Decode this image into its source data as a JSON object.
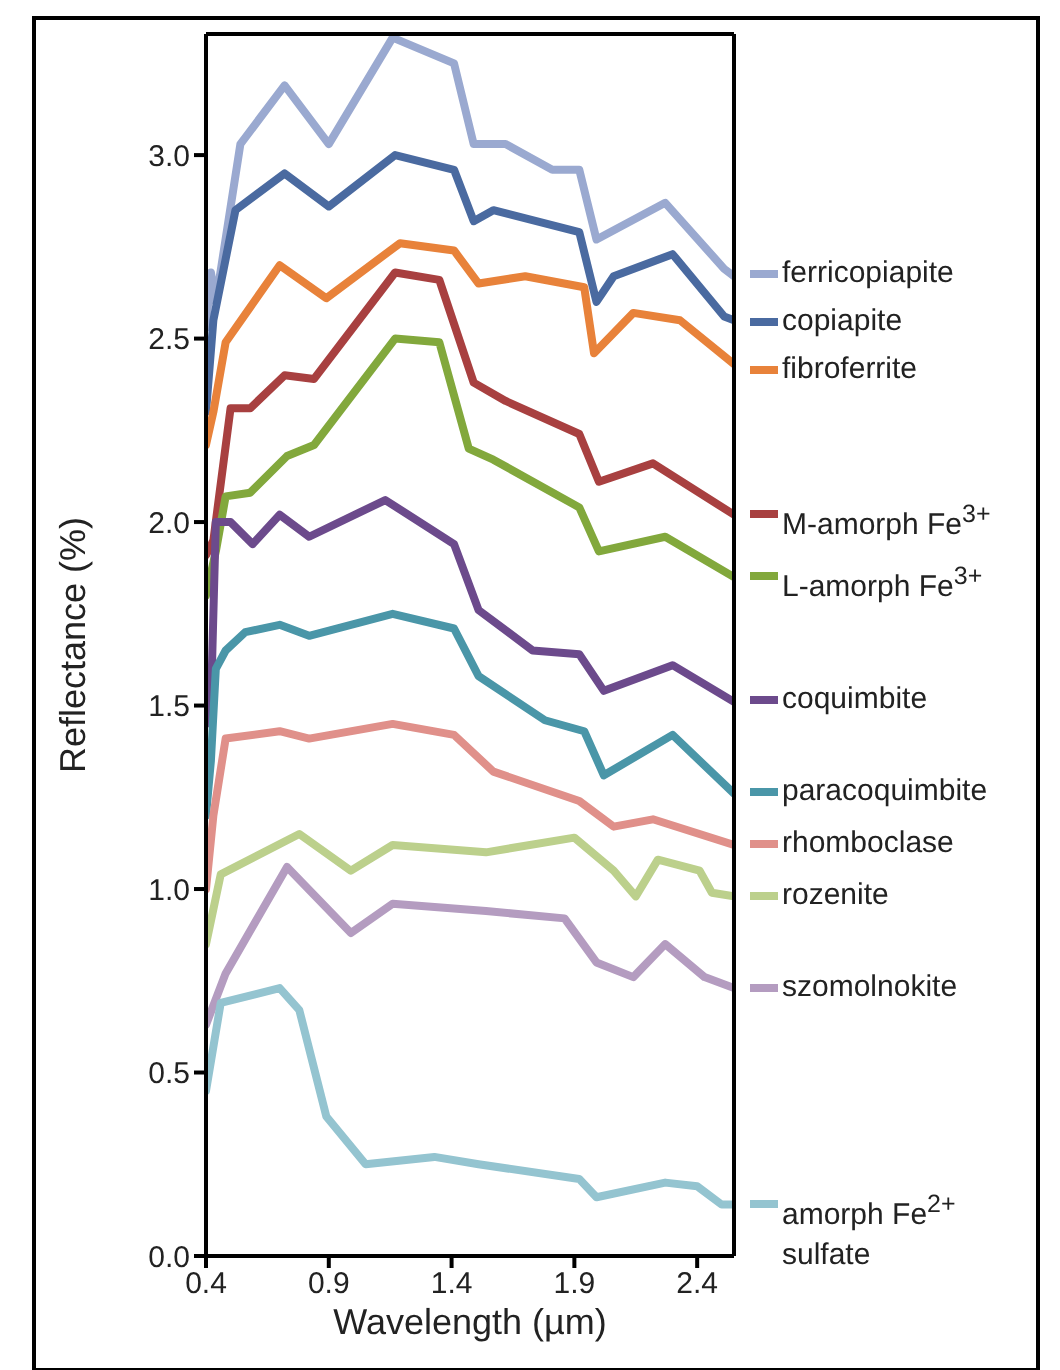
{
  "chart_data": {
    "type": "line",
    "xlabel": "Wavelength (µm)",
    "ylabel": "Reflectance (%)",
    "xlim": [
      0.4,
      2.55
    ],
    "xticks": [
      0.4,
      0.9,
      1.4,
      1.9,
      2.4
    ],
    "ylim": [
      0,
      3.33
    ],
    "yticks": [
      {
        "value": 0,
        "label": "0.0"
      },
      {
        "value": 0.5,
        "label": "0.5"
      },
      {
        "value": 1,
        "label": "1.0"
      },
      {
        "value": 1.5,
        "label": "1.5"
      },
      {
        "value": 2,
        "label": "2.0"
      },
      {
        "value": 2.5,
        "label": "2.5"
      },
      {
        "value": 3,
        "label": "3.0"
      }
    ],
    "legend": "right",
    "marker": "none",
    "line_style": "solid",
    "series": [
      {
        "name": "ferricopiapite",
        "color": "#9aa9d0",
        "x": [
          0.4,
          0.42,
          0.44,
          0.54,
          0.72,
          0.9,
          1.16,
          1.41,
          1.49,
          1.62,
          1.81,
          1.92,
          1.99,
          2.27,
          2.51,
          2.55
        ],
        "values": [
          2.53,
          2.68,
          2.6,
          3.03,
          3.19,
          3.03,
          3.32,
          3.25,
          3.03,
          3.03,
          2.96,
          2.96,
          2.77,
          2.87,
          2.69,
          2.67
        ]
      },
      {
        "name": "copiapite",
        "color": "#4a6aa0",
        "x": [
          0.4,
          0.43,
          0.52,
          0.72,
          0.9,
          1.17,
          1.41,
          1.49,
          1.57,
          1.92,
          1.99,
          2.06,
          2.3,
          2.51,
          2.55
        ],
        "values": [
          2.3,
          2.55,
          2.85,
          2.95,
          2.86,
          3.0,
          2.96,
          2.82,
          2.85,
          2.79,
          2.6,
          2.67,
          2.73,
          2.56,
          2.55
        ]
      },
      {
        "name": "fibroferrite",
        "color": "#e8823a",
        "x": [
          0.4,
          0.43,
          0.48,
          0.7,
          0.89,
          1.19,
          1.41,
          1.51,
          1.7,
          1.94,
          1.98,
          2.14,
          2.33,
          2.55
        ],
        "values": [
          2.21,
          2.3,
          2.49,
          2.7,
          2.61,
          2.76,
          2.74,
          2.65,
          2.67,
          2.64,
          2.46,
          2.57,
          2.55,
          2.43
        ]
      },
      {
        "name": "M-amorph Fe$^{3+}$",
        "color": "#a84040",
        "x": [
          0.4,
          0.43,
          0.5,
          0.58,
          0.72,
          0.84,
          1.17,
          1.35,
          1.49,
          1.62,
          1.92,
          2.0,
          2.22,
          2.55
        ],
        "values": [
          1.91,
          1.95,
          2.31,
          2.31,
          2.4,
          2.39,
          2.68,
          2.66,
          2.38,
          2.33,
          2.24,
          2.11,
          2.16,
          2.02
        ]
      },
      {
        "name": "L-amorph Fe$^{3+}$",
        "color": "#82a83c",
        "x": [
          0.4,
          0.44,
          0.48,
          0.58,
          0.73,
          0.84,
          1.17,
          1.35,
          1.47,
          1.57,
          1.92,
          2.0,
          2.27,
          2.55
        ],
        "values": [
          1.8,
          1.92,
          2.07,
          2.08,
          2.18,
          2.21,
          2.5,
          2.49,
          2.2,
          2.17,
          2.04,
          1.92,
          1.96,
          1.85
        ]
      },
      {
        "name": "coquimbite",
        "color": "#6c4a8c",
        "x": [
          0.4,
          0.42,
          0.44,
          0.5,
          0.59,
          0.7,
          0.82,
          1.13,
          1.41,
          1.51,
          1.73,
          1.92,
          2.02,
          2.3,
          2.55
        ],
        "values": [
          1.45,
          1.5,
          2.0,
          2.0,
          1.94,
          2.02,
          1.96,
          2.06,
          1.94,
          1.76,
          1.65,
          1.64,
          1.54,
          1.61,
          1.51
        ]
      },
      {
        "name": "paracoquimbite",
        "color": "#4a96a8",
        "x": [
          0.4,
          0.42,
          0.44,
          0.48,
          0.56,
          0.7,
          0.82,
          1.16,
          1.41,
          1.51,
          1.78,
          1.94,
          2.02,
          2.3,
          2.55
        ],
        "values": [
          1.2,
          1.35,
          1.6,
          1.65,
          1.7,
          1.72,
          1.69,
          1.75,
          1.71,
          1.58,
          1.46,
          1.43,
          1.31,
          1.42,
          1.26
        ]
      },
      {
        "name": "rhomboclase",
        "color": "#e0908a",
        "x": [
          0.4,
          0.43,
          0.48,
          0.7,
          0.82,
          1.16,
          1.41,
          1.57,
          1.92,
          2.06,
          2.22,
          2.55
        ],
        "values": [
          1.0,
          1.2,
          1.41,
          1.43,
          1.41,
          1.45,
          1.42,
          1.32,
          1.24,
          1.17,
          1.19,
          1.12
        ]
      },
      {
        "name": "rozenite",
        "color": "#bcd08c",
        "x": [
          0.4,
          0.46,
          0.78,
          0.99,
          1.16,
          1.54,
          1.9,
          2.06,
          2.15,
          2.24,
          2.41,
          2.46,
          2.55
        ],
        "values": [
          0.85,
          1.04,
          1.15,
          1.05,
          1.12,
          1.1,
          1.14,
          1.05,
          0.98,
          1.08,
          1.05,
          0.99,
          0.98
        ]
      },
      {
        "name": "szomolnokite",
        "color": "#b49cc0",
        "x": [
          0.4,
          0.48,
          0.73,
          0.99,
          1.16,
          1.54,
          1.86,
          1.99,
          2.14,
          2.27,
          2.43,
          2.55
        ],
        "values": [
          0.63,
          0.77,
          1.06,
          0.88,
          0.96,
          0.94,
          0.92,
          0.8,
          0.76,
          0.85,
          0.76,
          0.73
        ]
      },
      {
        "name": "amorph Fe$^{2+}$ sulfate",
        "color": "#94c4d0",
        "x": [
          0.4,
          0.46,
          0.7,
          0.78,
          0.89,
          1.05,
          1.33,
          1.51,
          1.92,
          1.99,
          2.27,
          2.4,
          2.5,
          2.55
        ],
        "values": [
          0.45,
          0.69,
          0.73,
          0.67,
          0.38,
          0.25,
          0.27,
          0.25,
          0.21,
          0.16,
          0.2,
          0.19,
          0.14,
          0.14
        ]
      }
    ]
  }
}
